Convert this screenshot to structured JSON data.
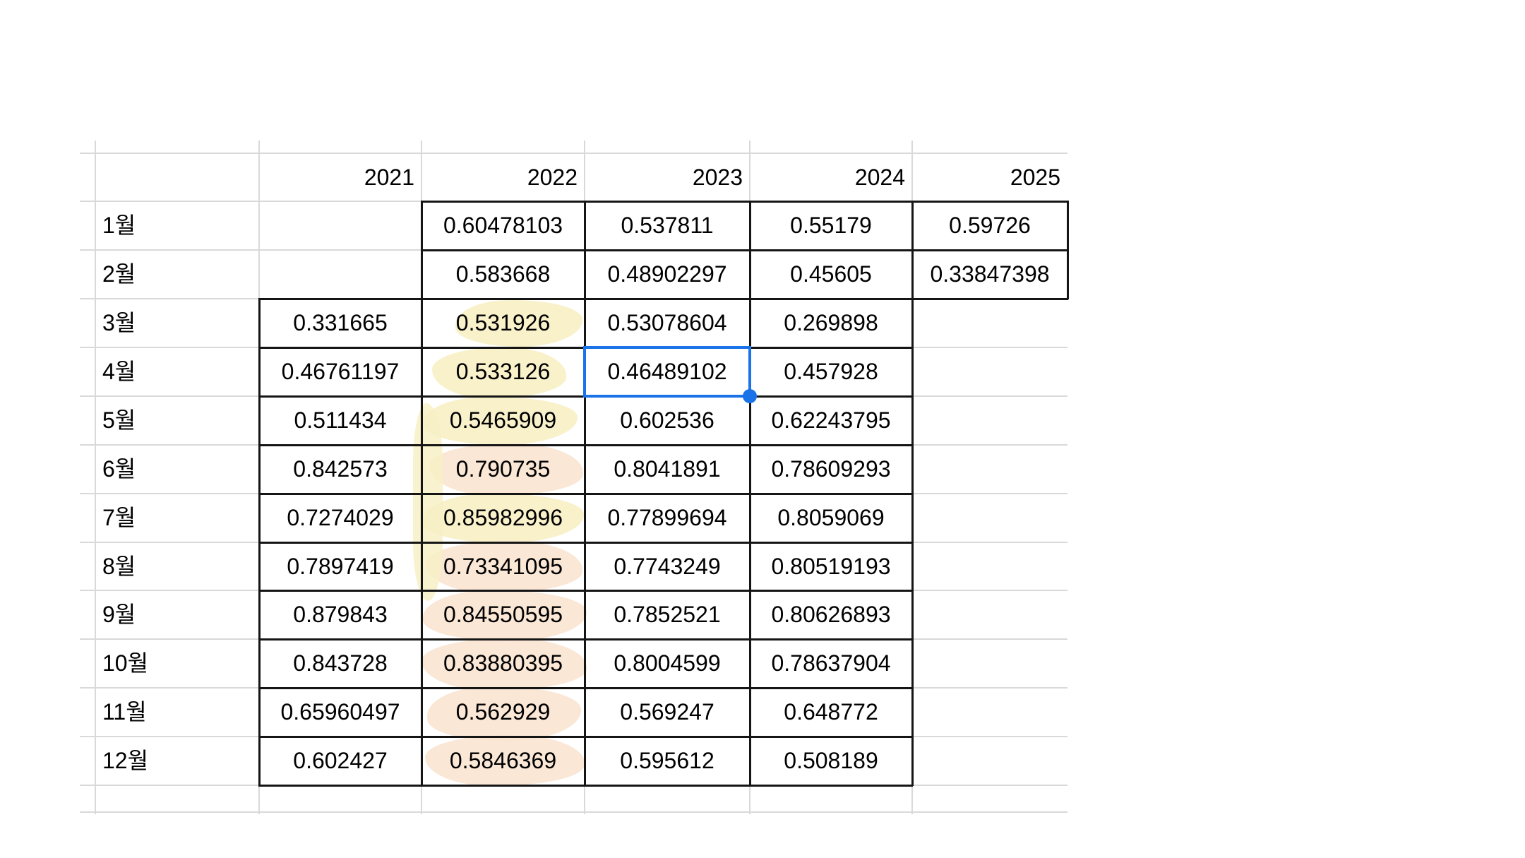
{
  "sheet": {
    "columns": [
      "2021",
      "2022",
      "2023",
      "2024",
      "2025"
    ],
    "rows": [
      {
        "label": "1월",
        "values": [
          "",
          "0.60478103",
          "0.537811",
          "0.55179",
          "0.59726"
        ]
      },
      {
        "label": "2월",
        "values": [
          "",
          "0.583668",
          "0.48902297",
          "0.45605",
          "0.33847398"
        ]
      },
      {
        "label": "3월",
        "values": [
          "0.331665",
          "0.531926",
          "0.53078604",
          "0.269898",
          ""
        ]
      },
      {
        "label": "4월",
        "values": [
          "0.46761197",
          "0.533126",
          "0.46489102",
          "0.457928",
          ""
        ]
      },
      {
        "label": "5월",
        "values": [
          "0.511434",
          "0.5465909",
          "0.602536",
          "0.62243795",
          ""
        ]
      },
      {
        "label": "6월",
        "values": [
          "0.842573",
          "0.790735",
          "0.8041891",
          "0.78609293",
          ""
        ]
      },
      {
        "label": "7월",
        "values": [
          "0.7274029",
          "0.85982996",
          "0.77899694",
          "0.8059069",
          ""
        ]
      },
      {
        "label": "8월",
        "values": [
          "0.7897419",
          "0.73341095",
          "0.7743249",
          "0.80519193",
          ""
        ]
      },
      {
        "label": "9월",
        "values": [
          "0.879843",
          "0.84550595",
          "0.7852521",
          "0.80626893",
          ""
        ]
      },
      {
        "label": "10월",
        "values": [
          "0.843728",
          "0.83880395",
          "0.8004599",
          "0.78637904",
          ""
        ]
      },
      {
        "label": "11월",
        "values": [
          "0.65960497",
          "0.562929",
          "0.569247",
          "0.648772",
          ""
        ]
      },
      {
        "label": "12월",
        "values": [
          "0.602427",
          "0.5846369",
          "0.595612",
          "0.508189",
          ""
        ]
      }
    ],
    "selection": {
      "row_label": "4월",
      "column": "2023",
      "value": "0.46489102",
      "border_color": "#1a73e8"
    },
    "annotations": {
      "highlight_colors": {
        "yellow": "#f7f0c6",
        "peach": "#fae5d2"
      },
      "highlighted_cells": [
        {
          "row_label": "3월",
          "column": "2022",
          "color": "yellow"
        },
        {
          "row_label": "4월",
          "column": "2022",
          "color": "yellow"
        },
        {
          "row_label": "5월",
          "column": "2022",
          "color": "yellow"
        },
        {
          "row_label": "6월",
          "column": "2022",
          "color": "peach"
        },
        {
          "row_label": "7월",
          "column": "2022",
          "color": "yellow"
        },
        {
          "row_label": "8월",
          "column": "2022",
          "color": "peach"
        },
        {
          "row_label": "9월",
          "column": "2022",
          "color": "peach"
        },
        {
          "row_label": "10월",
          "column": "2022",
          "color": "peach"
        },
        {
          "row_label": "11월",
          "column": "2022",
          "color": "peach"
        },
        {
          "row_label": "12월",
          "column": "2022",
          "color": "peach"
        }
      ]
    }
  }
}
